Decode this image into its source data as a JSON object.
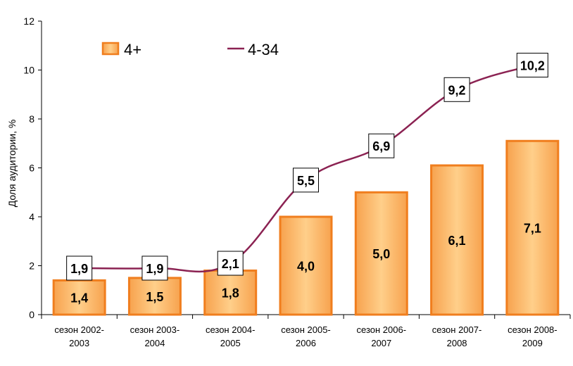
{
  "chart_data": {
    "type": "bar+line",
    "categories": [
      [
        "сезон 2002-",
        "2003"
      ],
      [
        "сезон 2003-",
        "2004"
      ],
      [
        "сезон 2004-",
        "2005"
      ],
      [
        "сезон 2005-",
        "2006"
      ],
      [
        "сезон 2006-",
        "2007"
      ],
      [
        "сезон 2007-",
        "2008"
      ],
      [
        "сезон 2008-",
        "2009"
      ]
    ],
    "series": [
      {
        "name": "4+",
        "type": "bar",
        "color": "#f07e1e",
        "values": [
          1.4,
          1.5,
          1.8,
          4.0,
          5.0,
          6.1,
          7.1
        ],
        "labels": [
          "1,4",
          "1,5",
          "1,8",
          "4,0",
          "5,0",
          "6,1",
          "7,1"
        ]
      },
      {
        "name": "4-34",
        "type": "line",
        "color": "#8b2252",
        "values": [
          1.9,
          1.9,
          2.1,
          5.5,
          6.9,
          9.2,
          10.2
        ],
        "labels": [
          "1,9",
          "1,9",
          "2,1",
          "5,5",
          "6,9",
          "9,2",
          "10,2"
        ]
      }
    ],
    "ylabel": "Доля аудитории, %",
    "ylim": [
      0,
      12
    ],
    "yticks": [
      0,
      2,
      4,
      6,
      8,
      10,
      12
    ],
    "grid": false,
    "legend_position": "top-left"
  }
}
